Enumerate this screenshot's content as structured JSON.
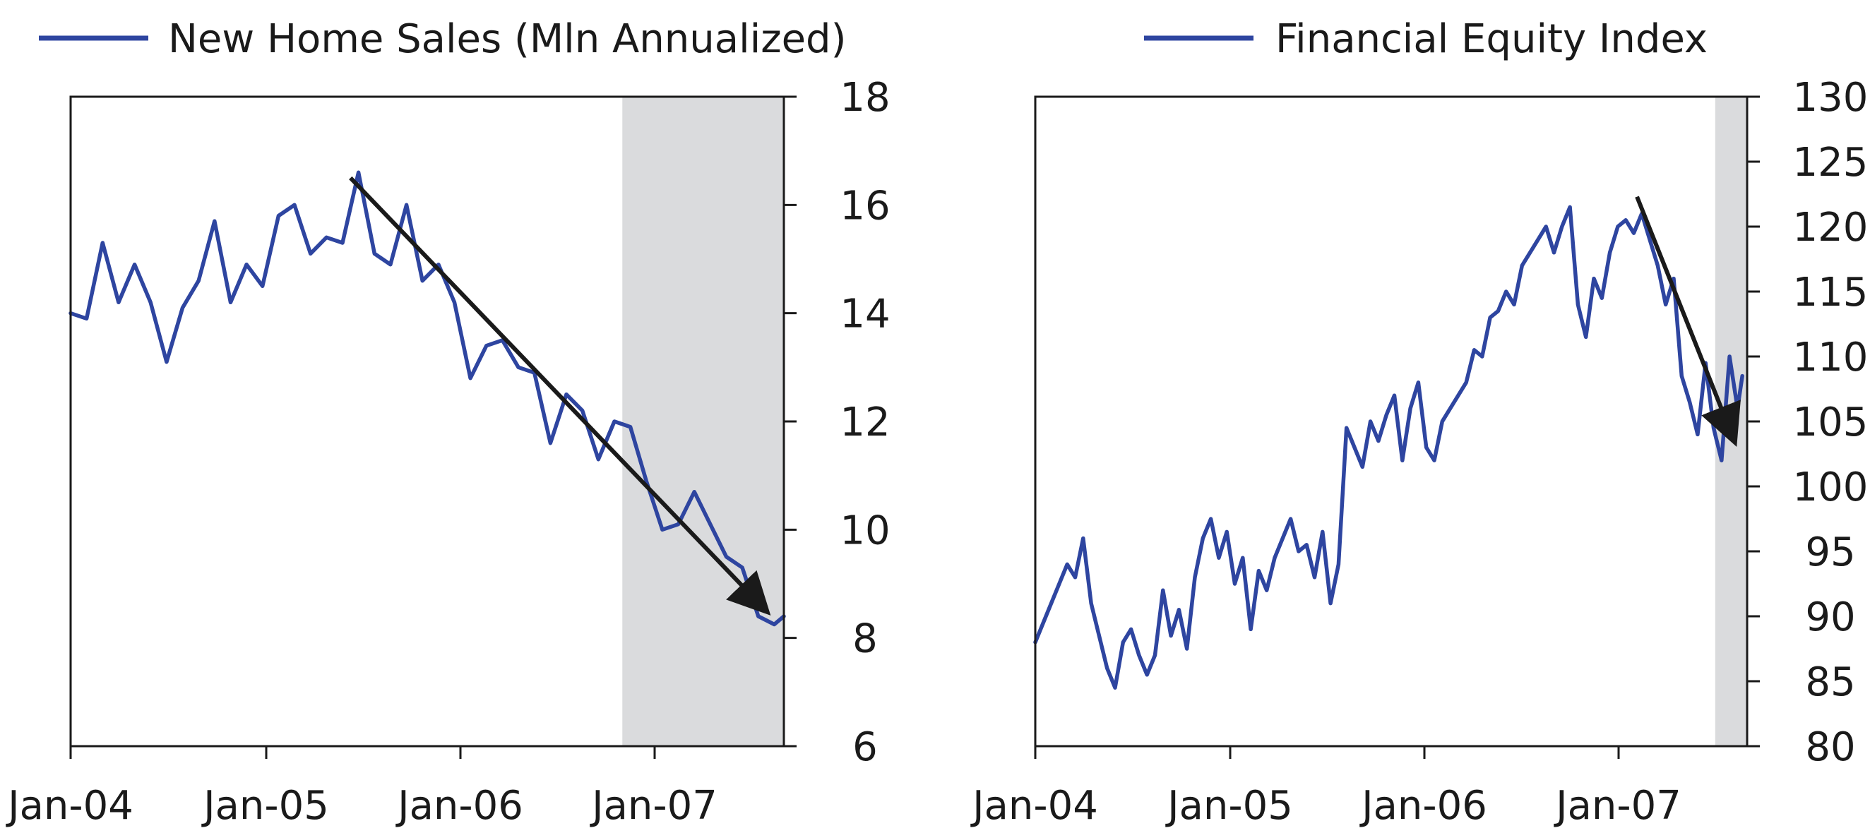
{
  "chart_data": [
    {
      "type": "line",
      "legend": "New Home Sales (Mln Annualized)",
      "series_color": "#2E45A0",
      "shade_color": "#DADBDD",
      "x_ticks": [
        "Jan-04",
        "Jan-05",
        "Jan-06",
        "Jan-07"
      ],
      "y_ticks": [
        "6",
        "8",
        "10",
        "12",
        "14",
        "16",
        "18"
      ],
      "x_range": [
        0,
        44.6
      ],
      "y_range": [
        6,
        18
      ],
      "y_axis_side": "right",
      "shaded_region": [
        34.5,
        44.6
      ],
      "trend_arrow": {
        "from": [
          17.5,
          16.5
        ],
        "to": [
          43.5,
          8.5
        ]
      },
      "x": [
        0,
        1,
        2,
        3,
        4,
        5,
        6,
        7,
        8,
        9,
        10,
        11,
        12,
        13,
        14,
        15,
        16,
        17,
        18,
        19,
        20,
        21,
        22,
        23,
        24,
        25,
        26,
        27,
        28,
        29,
        30,
        31,
        32,
        33,
        34,
        35,
        36,
        37,
        38,
        39,
        40,
        41,
        42,
        43,
        44,
        44.6
      ],
      "values": [
        14.0,
        13.9,
        15.3,
        14.2,
        14.9,
        14.2,
        13.1,
        14.1,
        14.6,
        15.7,
        14.2,
        14.9,
        14.5,
        15.8,
        16.0,
        15.1,
        15.4,
        15.3,
        16.6,
        15.1,
        14.9,
        16.0,
        14.6,
        14.9,
        14.2,
        12.8,
        13.4,
        13.5,
        13.0,
        12.9,
        11.6,
        12.5,
        12.2,
        11.3,
        12.0,
        11.9,
        10.9,
        10.0,
        10.1,
        10.7,
        10.1,
        9.5,
        9.3,
        8.4,
        8.25,
        8.4
      ]
    },
    {
      "type": "line",
      "legend": "Financial Equity Index",
      "series_color": "#2E45A0",
      "shade_color": "#DADBDD",
      "x_ticks": [
        "Jan-04",
        "Jan-05",
        "Jan-06",
        "Jan-07"
      ],
      "y_ticks": [
        "80",
        "85",
        "90",
        "95",
        "100",
        "105",
        "110",
        "115",
        "120",
        "125",
        "130"
      ],
      "x_range": [
        0,
        44.6
      ],
      "y_range": [
        80,
        130
      ],
      "y_axis_side": "right",
      "shaded_region": [
        42.6,
        44.6
      ],
      "trend_arrow": {
        "from": [
          37.7,
          122.3
        ],
        "to": [
          43.8,
          103.5
        ]
      },
      "x": [
        0,
        0.5,
        1,
        1.5,
        2,
        2.5,
        3,
        3.5,
        4,
        4.5,
        5,
        5.5,
        6,
        6.5,
        7,
        7.5,
        8,
        8.5,
        9,
        9.5,
        10,
        10.5,
        11,
        11.5,
        12,
        12.5,
        13,
        13.5,
        14,
        14.5,
        15,
        15.5,
        16,
        16.5,
        17,
        17.5,
        18,
        18.5,
        19,
        19.5,
        20,
        20.5,
        21,
        21.5,
        22,
        22.5,
        23,
        23.5,
        24,
        24.5,
        25,
        25.5,
        26,
        26.5,
        27,
        27.5,
        28,
        28.5,
        29,
        29.5,
        30,
        30.5,
        31,
        31.5,
        32,
        32.5,
        33,
        33.5,
        34,
        34.5,
        35,
        35.5,
        36,
        36.5,
        37,
        37.5,
        38,
        38.5,
        39,
        39.5,
        40,
        40.5,
        41,
        41.5,
        42,
        42.5,
        43,
        43.5,
        44,
        44.3
      ],
      "values": [
        88.0,
        89.5,
        91.0,
        92.5,
        94.0,
        93.0,
        96.0,
        91.0,
        88.5,
        86.0,
        84.5,
        88.0,
        89.0,
        87.0,
        85.5,
        87.0,
        92.0,
        88.5,
        90.5,
        87.5,
        93.0,
        96.0,
        97.5,
        94.5,
        96.5,
        92.5,
        94.5,
        89.0,
        93.5,
        92.0,
        94.5,
        96.0,
        97.5,
        95.0,
        95.5,
        93.0,
        96.5,
        91.0,
        94.0,
        104.5,
        103.0,
        101.5,
        105.0,
        103.5,
        105.5,
        107.0,
        102.0,
        106.0,
        108.0,
        103.0,
        102.0,
        105.0,
        106.0,
        107.0,
        108.0,
        110.5,
        110.0,
        113.0,
        113.5,
        115.0,
        114.0,
        117.0,
        118.0,
        119.0,
        120.0,
        118.0,
        120.0,
        121.5,
        114.0,
        111.5,
        116.0,
        114.5,
        118.0,
        120.0,
        120.5,
        119.5,
        121.0,
        119.0,
        117.0,
        114.0,
        116.0,
        108.5,
        106.5,
        104.0,
        109.5,
        104.5,
        102.0,
        110.0,
        106.0,
        108.5
      ]
    }
  ]
}
